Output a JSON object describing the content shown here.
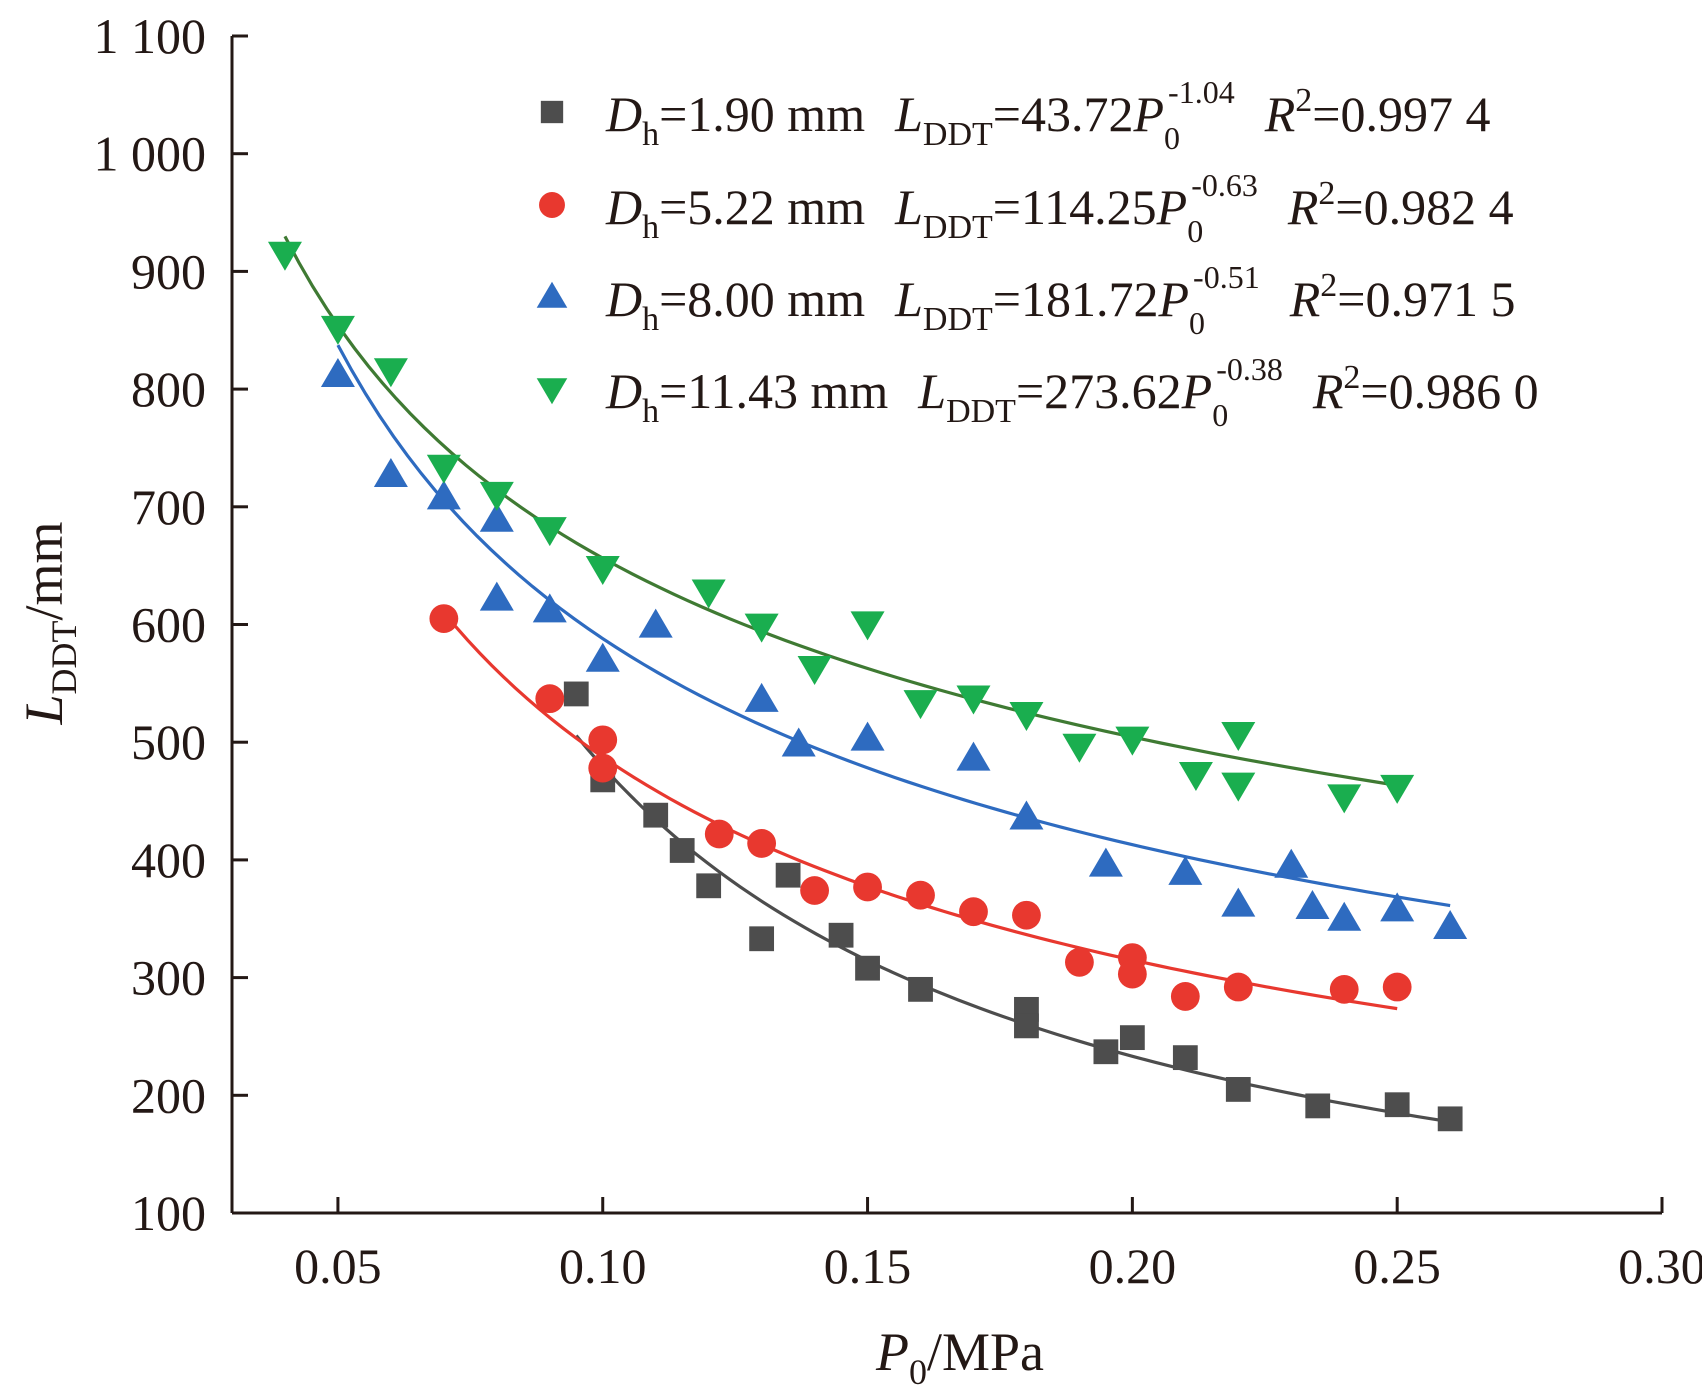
{
  "chart_data": {
    "type": "scatter",
    "xlabel": {
      "main": "P",
      "sub": "0",
      "rest": "/MPa"
    },
    "ylabel": {
      "main": "L",
      "sub": "DDT",
      "rest": "/mm"
    },
    "xlim": [
      0.03,
      0.3
    ],
    "ylim": [
      100,
      1100
    ],
    "xticks": [
      "0.05",
      "0.10",
      "0.15",
      "0.20",
      "0.25",
      "0.30"
    ],
    "yticks": [
      "100",
      "200",
      "300",
      "400",
      "500",
      "600",
      "700",
      "800",
      "900",
      "1 000",
      "1 100"
    ],
    "grid": false,
    "legend_position": "top-right",
    "series": [
      {
        "marker": "square",
        "color": "#4d4d4d",
        "legend": {
          "d_label": "D",
          "d_sub": "h",
          "d_value": "=1.90 mm",
          "l_label": "L",
          "l_sub": "DDT",
          "eq_value": "=43.72",
          "p_label": "P",
          "p_sub": "0",
          "exponent": "-1.04",
          "r_label": "R",
          "r_sup": "2",
          "r_value": "=0.997 4"
        },
        "fit": {
          "a": 43.72,
          "b": -1.04,
          "x_range": [
            0.095,
            0.26
          ]
        },
        "points": [
          [
            0.095,
            541
          ],
          [
            0.1,
            468
          ],
          [
            0.11,
            438
          ],
          [
            0.115,
            408
          ],
          [
            0.12,
            378
          ],
          [
            0.13,
            333
          ],
          [
            0.135,
            387
          ],
          [
            0.145,
            336
          ],
          [
            0.15,
            308
          ],
          [
            0.16,
            290
          ],
          [
            0.18,
            273
          ],
          [
            0.18,
            259
          ],
          [
            0.195,
            237
          ],
          [
            0.2,
            249
          ],
          [
            0.21,
            232
          ],
          [
            0.22,
            205
          ],
          [
            0.235,
            191
          ],
          [
            0.25,
            192
          ],
          [
            0.26,
            180
          ]
        ]
      },
      {
        "marker": "circle",
        "color": "#e8382f",
        "legend": {
          "d_label": "D",
          "d_sub": "h",
          "d_value": "=5.22 mm",
          "l_label": "L",
          "l_sub": "DDT",
          "eq_value": "=114.25",
          "p_label": "P",
          "p_sub": "0",
          "exponent": "-0.63",
          "r_label": "R",
          "r_sup": "2",
          "r_value": "=0.982 4"
        },
        "fit": {
          "a": 114.25,
          "b": -0.63,
          "x_range": [
            0.07,
            0.25
          ]
        },
        "points": [
          [
            0.07,
            605
          ],
          [
            0.09,
            537
          ],
          [
            0.1,
            502
          ],
          [
            0.1,
            478
          ],
          [
            0.122,
            422
          ],
          [
            0.13,
            414
          ],
          [
            0.14,
            374
          ],
          [
            0.15,
            377
          ],
          [
            0.16,
            370
          ],
          [
            0.17,
            356
          ],
          [
            0.18,
            353
          ],
          [
            0.19,
            313
          ],
          [
            0.2,
            317
          ],
          [
            0.2,
            303
          ],
          [
            0.21,
            284
          ],
          [
            0.22,
            292
          ],
          [
            0.24,
            290
          ],
          [
            0.25,
            292
          ]
        ]
      },
      {
        "marker": "triangle-up",
        "color": "#2e6bc0",
        "legend": {
          "d_label": "D",
          "d_sub": "h",
          "d_value": "=8.00 mm",
          "l_label": "L",
          "l_sub": "DDT",
          "eq_value": "=181.72",
          "p_label": "P",
          "p_sub": "0",
          "exponent": "-0.51",
          "r_label": "R",
          "r_sup": "2",
          "r_value": "=0.971 5"
        },
        "fit": {
          "a": 181.72,
          "b": -0.51,
          "x_range": [
            0.05,
            0.26
          ]
        },
        "points": [
          [
            0.05,
            812
          ],
          [
            0.06,
            727
          ],
          [
            0.07,
            708
          ],
          [
            0.08,
            689
          ],
          [
            0.08,
            622
          ],
          [
            0.09,
            612
          ],
          [
            0.1,
            570
          ],
          [
            0.11,
            599
          ],
          [
            0.13,
            536
          ],
          [
            0.137,
            498
          ],
          [
            0.15,
            503
          ],
          [
            0.17,
            486
          ],
          [
            0.18,
            436
          ],
          [
            0.195,
            396
          ],
          [
            0.21,
            389
          ],
          [
            0.22,
            362
          ],
          [
            0.23,
            395
          ],
          [
            0.234,
            360
          ],
          [
            0.24,
            350
          ],
          [
            0.25,
            358
          ],
          [
            0.26,
            343
          ]
        ]
      },
      {
        "marker": "triangle-down",
        "color": "#1aae4f",
        "line_color": "#3f7a33",
        "legend": {
          "d_label": "D",
          "d_sub": "h",
          "d_value": "=11.43 mm",
          "l_label": "L",
          "l_sub": "DDT",
          "eq_value": "=273.62",
          "p_label": "P",
          "p_sub": "0",
          "exponent": "-0.38",
          "r_label": "R",
          "r_sup": "2",
          "r_value": "=0.986 0"
        },
        "fit": {
          "a": 273.62,
          "b": -0.38,
          "x_range": [
            0.04,
            0.25
          ]
        },
        "points": [
          [
            0.04,
            915
          ],
          [
            0.05,
            852
          ],
          [
            0.06,
            816
          ],
          [
            0.07,
            734
          ],
          [
            0.08,
            711
          ],
          [
            0.09,
            681
          ],
          [
            0.1,
            648
          ],
          [
            0.12,
            628
          ],
          [
            0.13,
            599
          ],
          [
            0.14,
            563
          ],
          [
            0.15,
            601
          ],
          [
            0.16,
            534
          ],
          [
            0.17,
            538
          ],
          [
            0.18,
            524
          ],
          [
            0.19,
            497
          ],
          [
            0.2,
            503
          ],
          [
            0.212,
            473
          ],
          [
            0.22,
            507
          ],
          [
            0.22,
            464
          ],
          [
            0.24,
            454
          ],
          [
            0.25,
            462
          ]
        ]
      }
    ]
  }
}
